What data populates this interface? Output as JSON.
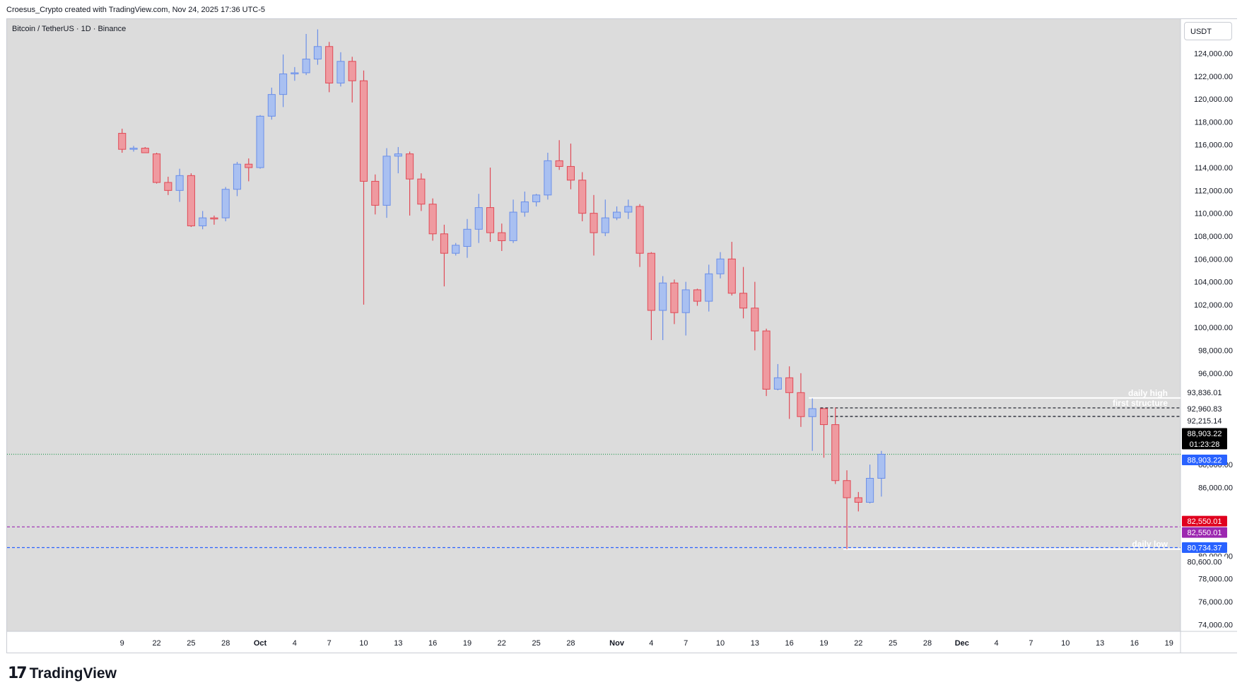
{
  "header": {
    "caption": "Croesus_Crypto created with TradingView.com, Nov 24, 2025 17:36 UTC-5"
  },
  "symbol": {
    "title": "Bitcoin / TetherUS · 1D · Binance"
  },
  "toolbar": {
    "currency": "USDT"
  },
  "brand": {
    "logo_mark": "17",
    "name": "TradingView"
  },
  "colors": {
    "plot_bg": "#dcdcdc",
    "up": "#6b8fe8",
    "up_fill": "#a9c0f1",
    "down": "#e04a56",
    "down_fill": "#ef9aa0",
    "dotted_green": "#2e9e57",
    "purple": "#9c27b0",
    "blue": "#2962ff",
    "white_line": "#ffffff"
  },
  "chart_data": {
    "type": "candlestick",
    "title": "Bitcoin / TetherUS · 1D · Binance",
    "ylim": [
      73400,
      127000
    ],
    "y_ticks": [
      74000,
      76000,
      78000,
      80000,
      82000,
      84000,
      86000,
      88000,
      90000,
      92000,
      94000,
      96000,
      98000,
      100000,
      102000,
      104000,
      106000,
      108000,
      110000,
      112000,
      114000,
      116000,
      118000,
      120000,
      122000,
      124000
    ],
    "y_tick_labels": [
      "74,000.00",
      "76,000.00",
      "78,000.00",
      "80,000.00",
      "",
      "",
      "86,000.00",
      "88,000.00",
      "",
      "",
      "",
      "96,000.00",
      "98,000.00",
      "100,000.00",
      "102,000.00",
      "104,000.00",
      "106,000.00",
      "108,000.00",
      "110,000.00",
      "112,000.00",
      "114,000.00",
      "116,000.00",
      "118,000.00",
      "120,000.00",
      "122,000.00",
      "124,000.00"
    ],
    "x_range": [
      "2025-09-09",
      "2025-12-20"
    ],
    "x_ticks": [
      {
        "date": "2025-09-19",
        "label": "9"
      },
      {
        "date": "2025-09-22",
        "label": "22"
      },
      {
        "date": "2025-09-25",
        "label": "25"
      },
      {
        "date": "2025-09-28",
        "label": "28"
      },
      {
        "date": "2025-10-01",
        "label": "Oct"
      },
      {
        "date": "2025-10-04",
        "label": "4"
      },
      {
        "date": "2025-10-07",
        "label": "7"
      },
      {
        "date": "2025-10-10",
        "label": "10"
      },
      {
        "date": "2025-10-13",
        "label": "13"
      },
      {
        "date": "2025-10-16",
        "label": "16"
      },
      {
        "date": "2025-10-19",
        "label": "19"
      },
      {
        "date": "2025-10-22",
        "label": "22"
      },
      {
        "date": "2025-10-25",
        "label": "25"
      },
      {
        "date": "2025-10-28",
        "label": "28"
      },
      {
        "date": "2025-11-01",
        "label": "Nov"
      },
      {
        "date": "2025-11-04",
        "label": "4"
      },
      {
        "date": "2025-11-07",
        "label": "7"
      },
      {
        "date": "2025-11-10",
        "label": "10"
      },
      {
        "date": "2025-11-13",
        "label": "13"
      },
      {
        "date": "2025-11-16",
        "label": "16"
      },
      {
        "date": "2025-11-19",
        "label": "19"
      },
      {
        "date": "2025-11-22",
        "label": "22"
      },
      {
        "date": "2025-11-25",
        "label": "25"
      },
      {
        "date": "2025-11-28",
        "label": "28"
      },
      {
        "date": "2025-12-01",
        "label": "Dec"
      },
      {
        "date": "2025-12-04",
        "label": "4"
      },
      {
        "date": "2025-12-07",
        "label": "7"
      },
      {
        "date": "2025-12-10",
        "label": "10"
      },
      {
        "date": "2025-12-13",
        "label": "13"
      },
      {
        "date": "2025-12-16",
        "label": "16"
      },
      {
        "date": "2025-12-19",
        "label": "19"
      }
    ],
    "candles": [
      {
        "date": "2025-09-19",
        "o": 117000,
        "h": 117400,
        "l": 115300,
        "c": 115600
      },
      {
        "date": "2025-09-20",
        "o": 115600,
        "h": 115900,
        "l": 115400,
        "c": 115700
      },
      {
        "date": "2025-09-21",
        "o": 115700,
        "h": 115800,
        "l": 115300,
        "c": 115300
      },
      {
        "date": "2025-09-22",
        "o": 115200,
        "h": 115300,
        "l": 112600,
        "c": 112700
      },
      {
        "date": "2025-09-23",
        "o": 112700,
        "h": 113200,
        "l": 111600,
        "c": 112000
      },
      {
        "date": "2025-09-24",
        "o": 112000,
        "h": 113900,
        "l": 111000,
        "c": 113300
      },
      {
        "date": "2025-09-25",
        "o": 113300,
        "h": 113500,
        "l": 108800,
        "c": 108900
      },
      {
        "date": "2025-09-26",
        "o": 108900,
        "h": 110200,
        "l": 108600,
        "c": 109600
      },
      {
        "date": "2025-09-27",
        "o": 109600,
        "h": 109800,
        "l": 109000,
        "c": 109500
      },
      {
        "date": "2025-09-28",
        "o": 109600,
        "h": 112300,
        "l": 109300,
        "c": 112100
      },
      {
        "date": "2025-09-29",
        "o": 112100,
        "h": 114500,
        "l": 111500,
        "c": 114300
      },
      {
        "date": "2025-09-30",
        "o": 114300,
        "h": 114800,
        "l": 112800,
        "c": 114000
      },
      {
        "date": "2025-10-01",
        "o": 114000,
        "h": 118600,
        "l": 113900,
        "c": 118500
      },
      {
        "date": "2025-10-02",
        "o": 118500,
        "h": 121000,
        "l": 118200,
        "c": 120400
      },
      {
        "date": "2025-10-03",
        "o": 120400,
        "h": 123900,
        "l": 119300,
        "c": 122200
      },
      {
        "date": "2025-10-04",
        "o": 122200,
        "h": 122800,
        "l": 121600,
        "c": 122300
      },
      {
        "date": "2025-10-05",
        "o": 122300,
        "h": 125700,
        "l": 122100,
        "c": 123500
      },
      {
        "date": "2025-10-06",
        "o": 123500,
        "h": 126100,
        "l": 123000,
        "c": 124600
      },
      {
        "date": "2025-10-07",
        "o": 124600,
        "h": 125000,
        "l": 120600,
        "c": 121400
      },
      {
        "date": "2025-10-08",
        "o": 121400,
        "h": 124100,
        "l": 121100,
        "c": 123300
      },
      {
        "date": "2025-10-09",
        "o": 123300,
        "h": 123700,
        "l": 119700,
        "c": 121600
      },
      {
        "date": "2025-10-10",
        "o": 121600,
        "h": 122500,
        "l": 102000,
        "c": 112800
      },
      {
        "date": "2025-10-11",
        "o": 112800,
        "h": 113400,
        "l": 109900,
        "c": 110700
      },
      {
        "date": "2025-10-12",
        "o": 110700,
        "h": 115700,
        "l": 109600,
        "c": 115000
      },
      {
        "date": "2025-10-13",
        "o": 115000,
        "h": 115800,
        "l": 113500,
        "c": 115200
      },
      {
        "date": "2025-10-14",
        "o": 115200,
        "h": 115400,
        "l": 109800,
        "c": 113000
      },
      {
        "date": "2025-10-15",
        "o": 113000,
        "h": 113500,
        "l": 110200,
        "c": 110800
      },
      {
        "date": "2025-10-16",
        "o": 110800,
        "h": 111300,
        "l": 107600,
        "c": 108200
      },
      {
        "date": "2025-10-17",
        "o": 108200,
        "h": 109000,
        "l": 103600,
        "c": 106500
      },
      {
        "date": "2025-10-18",
        "o": 106500,
        "h": 107400,
        "l": 106300,
        "c": 107200
      },
      {
        "date": "2025-10-19",
        "o": 107100,
        "h": 109500,
        "l": 106100,
        "c": 108600
      },
      {
        "date": "2025-10-20",
        "o": 108600,
        "h": 111700,
        "l": 107400,
        "c": 110500
      },
      {
        "date": "2025-10-21",
        "o": 110500,
        "h": 114000,
        "l": 107500,
        "c": 108300
      },
      {
        "date": "2025-10-22",
        "o": 108300,
        "h": 109100,
        "l": 106700,
        "c": 107600
      },
      {
        "date": "2025-10-23",
        "o": 107600,
        "h": 111200,
        "l": 107400,
        "c": 110100
      },
      {
        "date": "2025-10-24",
        "o": 110100,
        "h": 111900,
        "l": 109700,
        "c": 111000
      },
      {
        "date": "2025-10-25",
        "o": 111000,
        "h": 111700,
        "l": 110600,
        "c": 111600
      },
      {
        "date": "2025-10-26",
        "o": 111600,
        "h": 115300,
        "l": 111200,
        "c": 114600
      },
      {
        "date": "2025-10-27",
        "o": 114600,
        "h": 116400,
        "l": 113800,
        "c": 114100
      },
      {
        "date": "2025-10-28",
        "o": 114100,
        "h": 116100,
        "l": 112100,
        "c": 112900
      },
      {
        "date": "2025-10-29",
        "o": 112900,
        "h": 113600,
        "l": 109300,
        "c": 110000
      },
      {
        "date": "2025-10-30",
        "o": 110000,
        "h": 111600,
        "l": 106300,
        "c": 108300
      },
      {
        "date": "2025-10-31",
        "o": 108300,
        "h": 111200,
        "l": 108000,
        "c": 109600
      },
      {
        "date": "2025-11-01",
        "o": 109600,
        "h": 110600,
        "l": 109400,
        "c": 110100
      },
      {
        "date": "2025-11-02",
        "o": 110100,
        "h": 111200,
        "l": 109500,
        "c": 110600
      },
      {
        "date": "2025-11-03",
        "o": 110600,
        "h": 110800,
        "l": 105300,
        "c": 106500
      },
      {
        "date": "2025-11-04",
        "o": 106500,
        "h": 106600,
        "l": 98900,
        "c": 101500
      },
      {
        "date": "2025-11-05",
        "o": 101500,
        "h": 104500,
        "l": 98900,
        "c": 103900
      },
      {
        "date": "2025-11-06",
        "o": 103900,
        "h": 104200,
        "l": 100300,
        "c": 101300
      },
      {
        "date": "2025-11-07",
        "o": 101300,
        "h": 104000,
        "l": 99300,
        "c": 103300
      },
      {
        "date": "2025-11-08",
        "o": 103300,
        "h": 103400,
        "l": 101900,
        "c": 102300
      },
      {
        "date": "2025-11-09",
        "o": 102300,
        "h": 105500,
        "l": 101400,
        "c": 104700
      },
      {
        "date": "2025-11-10",
        "o": 104700,
        "h": 106600,
        "l": 104300,
        "c": 106000
      },
      {
        "date": "2025-11-11",
        "o": 106000,
        "h": 107500,
        "l": 102800,
        "c": 103000
      },
      {
        "date": "2025-11-12",
        "o": 103000,
        "h": 105300,
        "l": 100800,
        "c": 101700
      },
      {
        "date": "2025-11-13",
        "o": 101700,
        "h": 104000,
        "l": 98000,
        "c": 99700
      },
      {
        "date": "2025-11-14",
        "o": 99700,
        "h": 99900,
        "l": 94000,
        "c": 94600
      },
      {
        "date": "2025-11-15",
        "o": 94600,
        "h": 96800,
        "l": 94500,
        "c": 95600
      },
      {
        "date": "2025-11-16",
        "o": 95600,
        "h": 96600,
        "l": 92000,
        "c": 94300
      },
      {
        "date": "2025-11-17",
        "o": 94300,
        "h": 96000,
        "l": 91300,
        "c": 92200
      },
      {
        "date": "2025-11-18",
        "o": 92200,
        "h": 93800,
        "l": 89200,
        "c": 92900
      },
      {
        "date": "2025-11-19",
        "o": 92900,
        "h": 92900,
        "l": 88600,
        "c": 91500
      },
      {
        "date": "2025-11-20",
        "o": 91500,
        "h": 93000,
        "l": 86300,
        "c": 86600
      },
      {
        "date": "2025-11-21",
        "o": 86600,
        "h": 87500,
        "l": 80600,
        "c": 85100
      },
      {
        "date": "2025-11-22",
        "o": 85100,
        "h": 85600,
        "l": 83900,
        "c": 84700
      },
      {
        "date": "2025-11-23",
        "o": 84700,
        "h": 88000,
        "l": 84600,
        "c": 86800
      },
      {
        "date": "2025-11-24",
        "o": 86800,
        "h": 89200,
        "l": 85200,
        "c": 88903
      }
    ],
    "levels": [
      {
        "name": "daily high",
        "value": 93836.01,
        "label": "daily high",
        "price_label": "93,836.01",
        "style": "solid",
        "color": "#ffffff",
        "from": "2025-11-18"
      },
      {
        "name": "first structure",
        "value": 92960.83,
        "label": "first structure",
        "price_label": "92,960.83",
        "style": "dashed",
        "color": "#131722",
        "from": "2025-11-19"
      },
      {
        "name": "first structure low",
        "value": 92215.14,
        "label": "",
        "price_label": "92,215.14",
        "style": "dashed",
        "color": "#131722",
        "from": "2025-11-19"
      },
      {
        "name": "last price",
        "value": 88903.22,
        "label": "",
        "price_label": "88,903.22",
        "style": "dotted",
        "color": "#2e9e57",
        "from": "start"
      },
      {
        "name": "purple level",
        "value": 82550.01,
        "label": "",
        "price_label": "82,550.01",
        "style": "dashed",
        "color": "#9c27b0",
        "from": "start"
      },
      {
        "name": "blue level",
        "value": 80734.37,
        "label": "",
        "price_label": "80,734.37",
        "style": "dashed",
        "color": "#2962ff",
        "from": "start"
      },
      {
        "name": "daily low",
        "value": 80600.0,
        "label": "daily low",
        "price_label": "80,600.00",
        "style": "solid",
        "color": "#ffffff",
        "from": "2025-11-21"
      }
    ],
    "price_tags": [
      {
        "value": 88903.22,
        "text": "88,903.22",
        "sub": "01:23:28",
        "bg": "#000000",
        "fg": "#ffffff",
        "slot": "above"
      },
      {
        "value": 88903.22,
        "text": "88,903.22",
        "sub": "",
        "bg": "#2962ff",
        "fg": "#ffffff",
        "slot": "below"
      },
      {
        "value": 82550.01,
        "text": "82,550.01",
        "sub": "",
        "bg": "#e0001e",
        "fg": "#ffffff",
        "slot": "above"
      },
      {
        "value": 82550.01,
        "text": "82,550.01",
        "sub": "",
        "bg": "#9c27b0",
        "fg": "#ffffff",
        "slot": "below"
      },
      {
        "value": 80734.37,
        "text": "80,734.37",
        "sub": "",
        "bg": "#2962ff",
        "fg": "#ffffff",
        "slot": "center"
      },
      {
        "value": 80600.0,
        "text": "80,600.00",
        "sub": "",
        "bg": "#ffffff",
        "fg": "#131722",
        "slot": "below"
      },
      {
        "value": 93836.01,
        "text": "93,836.01",
        "sub": "",
        "bg": "#ffffff",
        "fg": "#131722",
        "slot": "center"
      },
      {
        "value": 92960.83,
        "text": "92,960.83",
        "sub": "",
        "bg": "#ffffff",
        "fg": "#131722",
        "slot": "center"
      },
      {
        "value": 92215.14,
        "text": "92,215.14",
        "sub": "",
        "bg": "#ffffff",
        "fg": "#131722",
        "slot": "center"
      }
    ]
  }
}
